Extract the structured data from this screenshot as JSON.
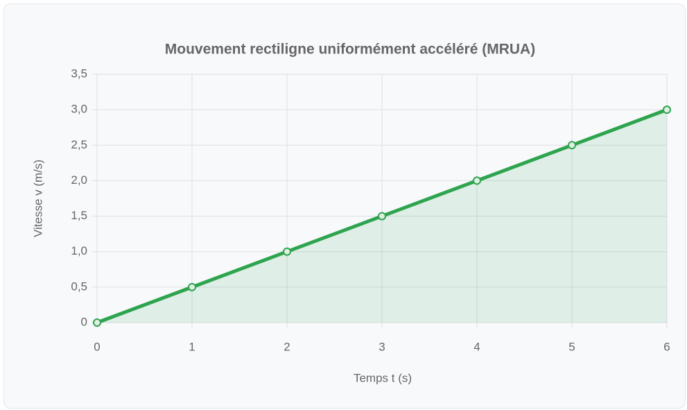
{
  "chart_data": {
    "type": "line",
    "title": "Mouvement rectiligne uniformément accéléré (MRUA)",
    "x_label": "Temps t (s)",
    "y_label": "Vitesse v (m/s)",
    "x": [
      0,
      1,
      2,
      3,
      4,
      5,
      6
    ],
    "series": [
      {
        "color": "#2ea44f",
        "values": [
          0,
          0.5,
          1.0,
          1.5,
          2.0,
          2.5,
          3.0
        ]
      }
    ],
    "xlim": [
      0,
      6
    ],
    "xticks": [
      0,
      1,
      2,
      3,
      4,
      5,
      6
    ],
    "ylim": [
      0,
      3.5
    ],
    "yticks": [
      0,
      {
        "value": 0.5,
        "label": "0,5"
      },
      {
        "value": 1.0,
        "label": "1,0"
      },
      {
        "value": 1.5,
        "label": "1,5"
      },
      {
        "value": 2.0,
        "label": "2,0"
      },
      {
        "value": 2.5,
        "label": "2,5"
      },
      {
        "value": 3.0,
        "label": "3,0"
      },
      {
        "value": 3.5,
        "label": "3,5"
      }
    ],
    "grid": true,
    "fill": true
  }
}
